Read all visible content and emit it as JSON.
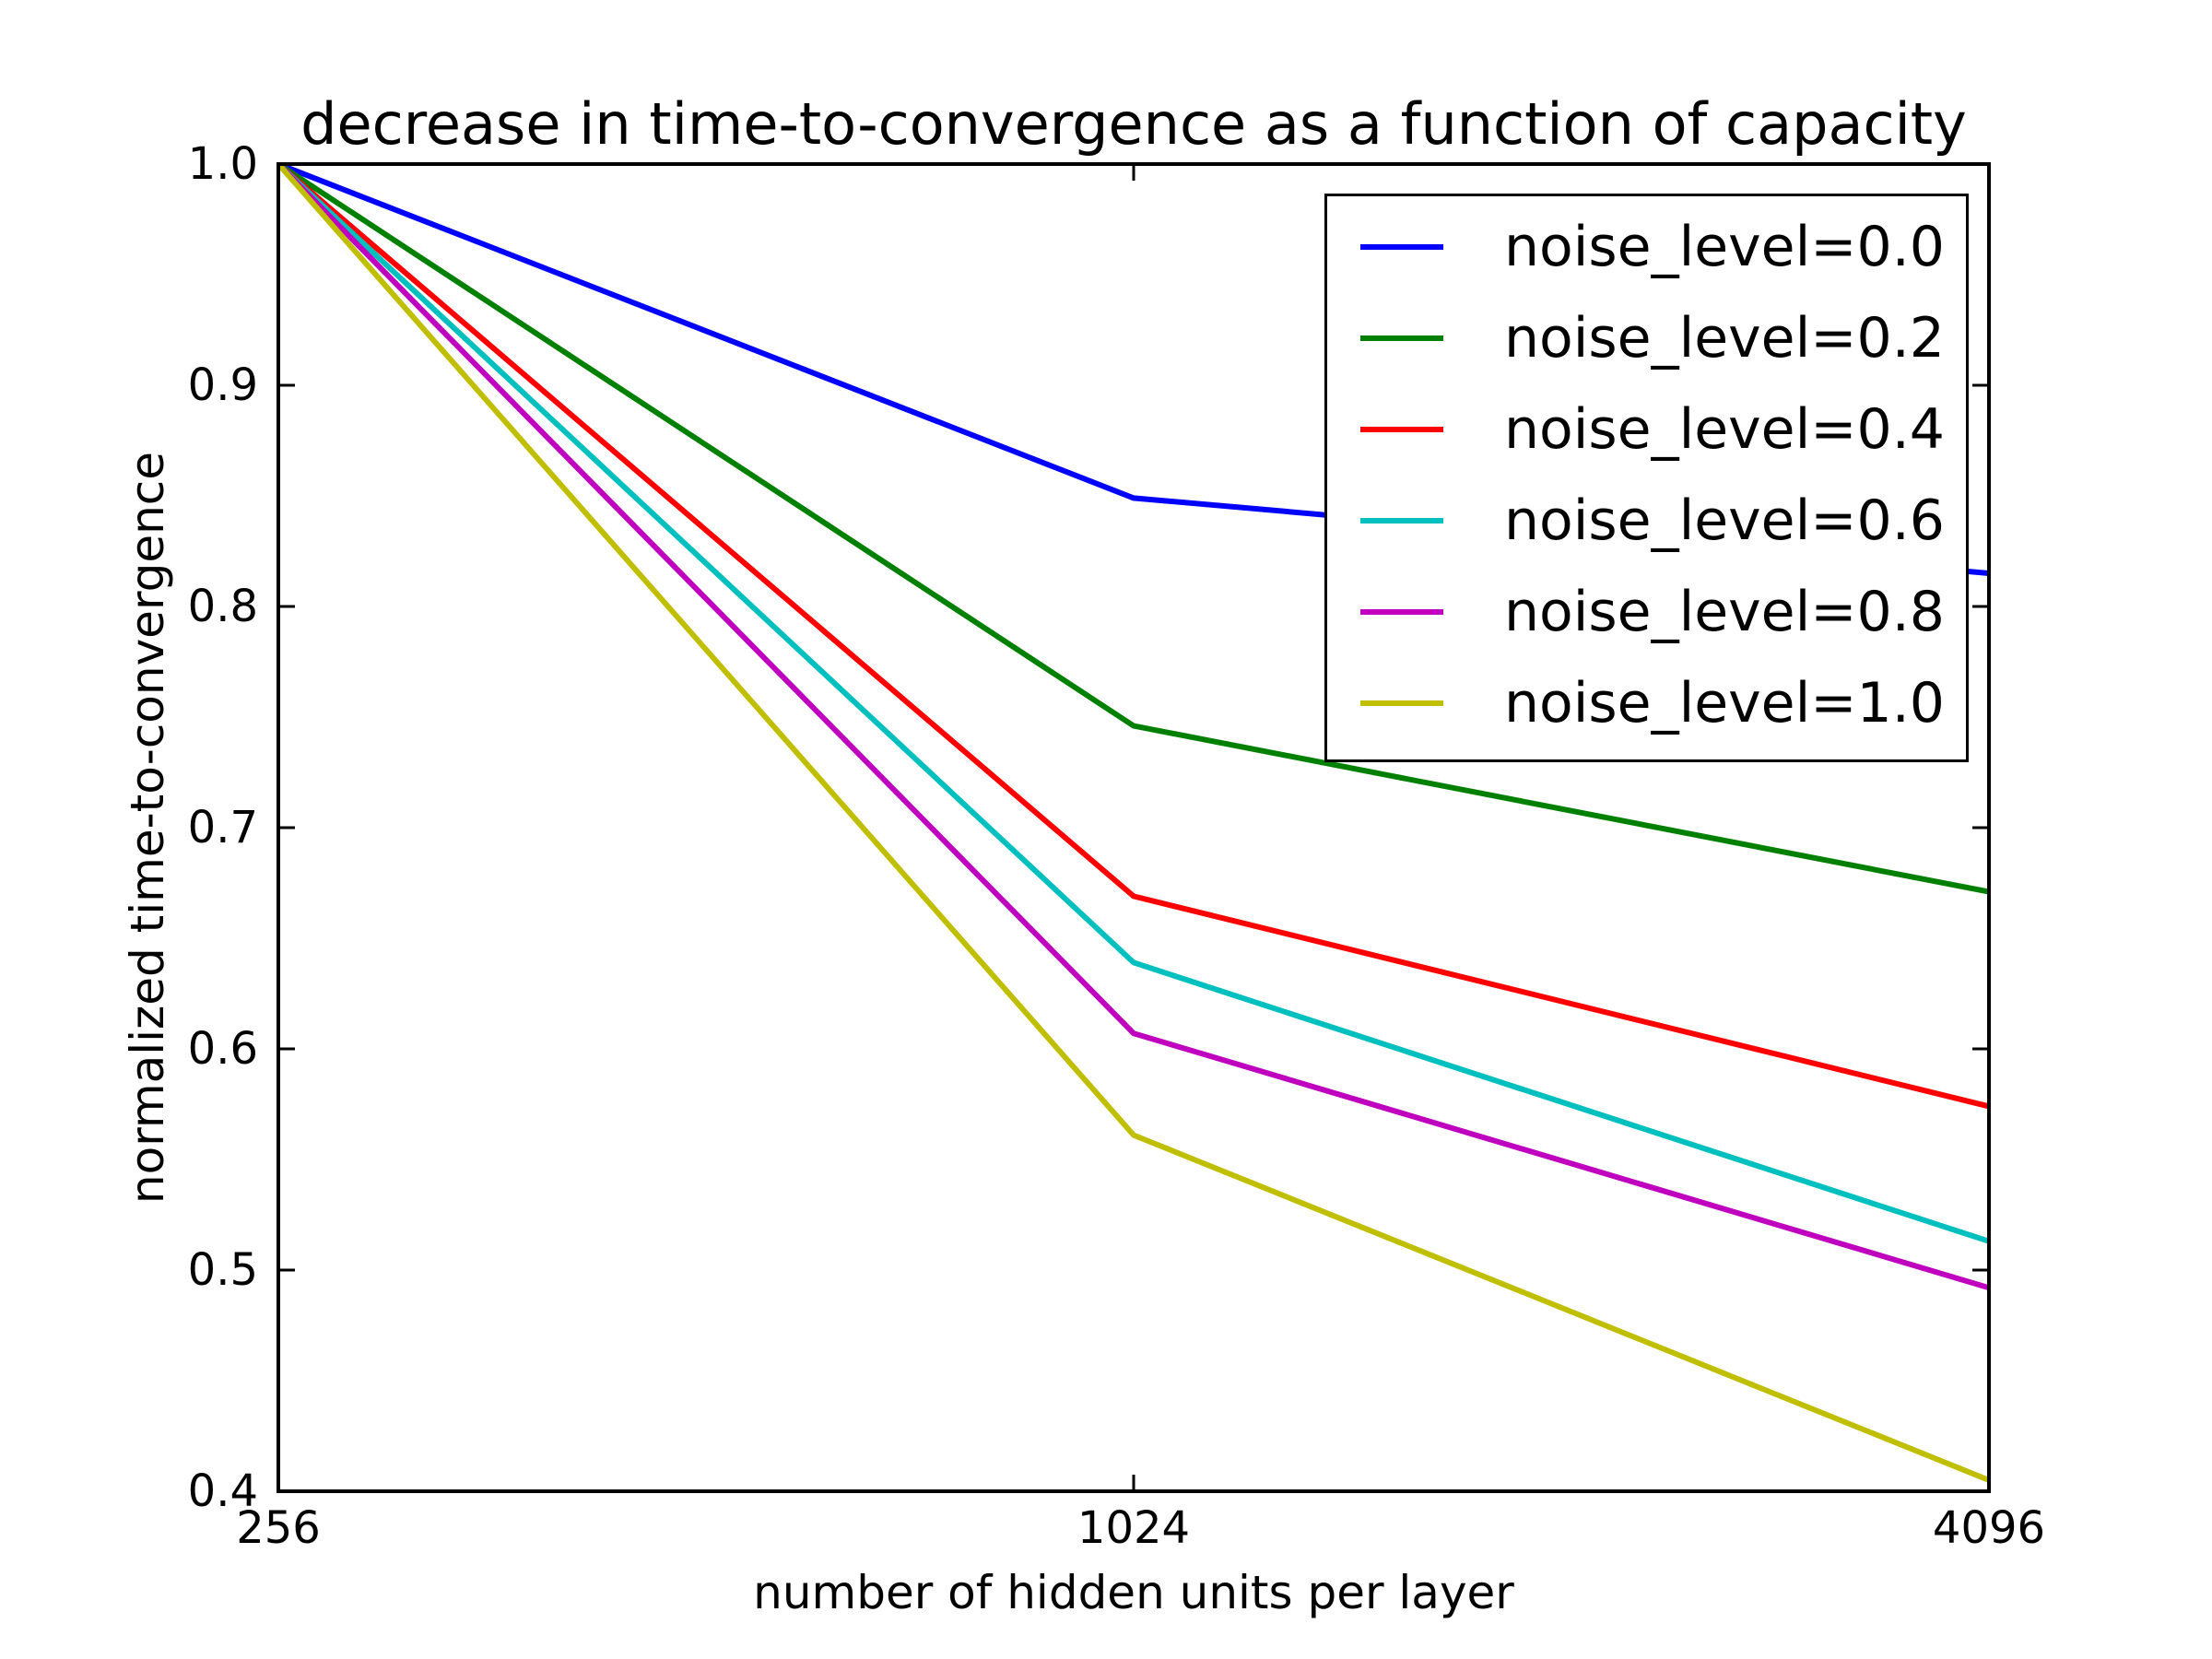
{
  "chart_data": {
    "type": "line",
    "title": "decrease in time-to-convergence as a function of capacity",
    "xlabel": "number of hidden units per layer",
    "ylabel": "normalized time-to-convergence",
    "xscale": "log2",
    "xlim": [
      256,
      4096
    ],
    "ylim": [
      0.4,
      1.0
    ],
    "grid": false,
    "x": [
      256,
      1024,
      4096
    ],
    "xtick_values": [
      256,
      1024,
      4096
    ],
    "xtick_labels": [
      "256",
      "1024",
      "4096"
    ],
    "ytick_values": [
      1.0,
      0.9,
      0.8,
      0.7,
      0.6,
      0.5,
      0.4
    ],
    "ytick_labels": [
      "1.0",
      "0.9",
      "0.8",
      "0.7",
      "0.6",
      "0.5",
      "0.4"
    ],
    "legend_position": "upper right",
    "frame_color": "#000000",
    "background_color": "#ffffff",
    "series": [
      {
        "name": "noise_level=0.0",
        "color": "#0000ff",
        "values": [
          1.0,
          0.849,
          0.815
        ]
      },
      {
        "name": "noise_level=0.2",
        "color": "#008000",
        "values": [
          1.0,
          0.746,
          0.671
        ]
      },
      {
        "name": "noise_level=0.4",
        "color": "#ff0000",
        "values": [
          1.0,
          0.669,
          0.574
        ]
      },
      {
        "name": "noise_level=0.6",
        "color": "#00bfbf",
        "values": [
          1.0,
          0.639,
          0.513
        ]
      },
      {
        "name": "noise_level=0.8",
        "color": "#bf00bf",
        "values": [
          1.0,
          0.607,
          0.492
        ]
      },
      {
        "name": "noise_level=1.0",
        "color": "#bfbf00",
        "values": [
          1.0,
          0.561,
          0.405
        ]
      }
    ]
  }
}
